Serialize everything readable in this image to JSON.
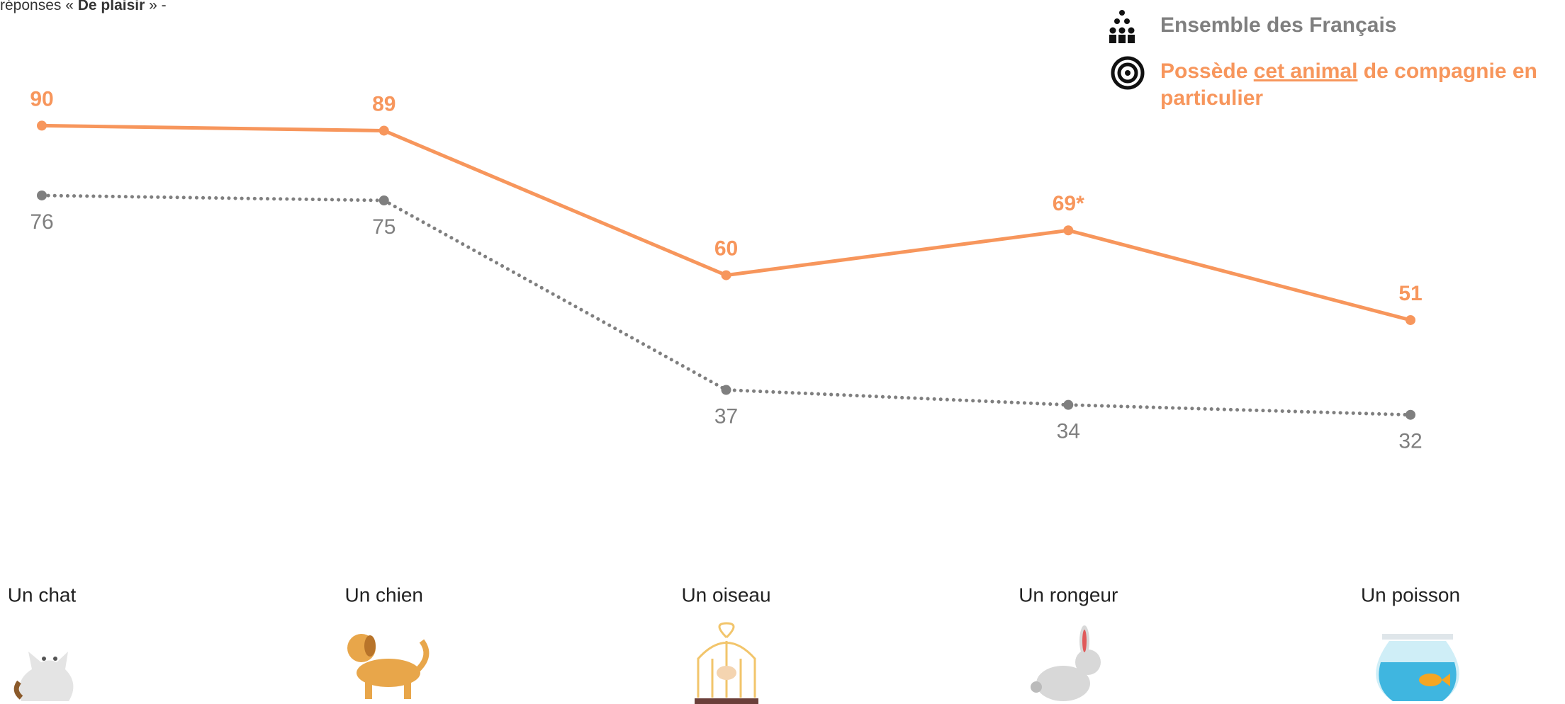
{
  "chart_data": {
    "type": "line",
    "subtitle_parts": [
      {
        "text": "réponses « "
      },
      {
        "text": "De plaisir",
        "bold": true
      },
      {
        "text": " » -"
      }
    ],
    "categories": [
      "Un chat",
      "Un chien",
      "Un oiseau",
      "Un rongeur",
      "Un poisson"
    ],
    "series": [
      {
        "name": "Ensemble des Français",
        "color": "#7f7f7f",
        "style": "dotted",
        "values": [
          76,
          75,
          37,
          34,
          32
        ]
      },
      {
        "name_parts": [
          {
            "text": "Possède "
          },
          {
            "text": "cet animal",
            "underline": true
          },
          {
            "text": " de compagnie en particulier"
          }
        ],
        "color": "#f7965c",
        "style": "solid",
        "values": [
          90,
          89,
          60,
          69,
          51
        ],
        "value_labels": [
          "90",
          "89",
          "60",
          "69*",
          "51"
        ]
      }
    ],
    "ylim": [
      0,
      100
    ]
  }
}
